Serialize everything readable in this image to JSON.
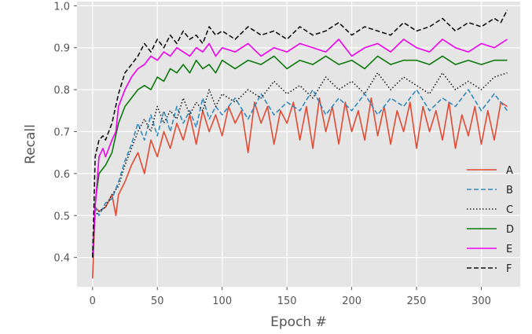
{
  "chart_data": {
    "type": "line",
    "title": "",
    "xlabel": "Epoch #",
    "ylabel": "Recall",
    "xlim": [
      -12,
      330
    ],
    "ylim": [
      0.33,
      1.01
    ],
    "x_ticks": [
      0,
      50,
      100,
      150,
      200,
      250,
      300
    ],
    "y_ticks": [
      0.4,
      0.5,
      0.6,
      0.7,
      0.8,
      0.9,
      1.0
    ],
    "grid": true,
    "background": "#e5e5e5",
    "legend_position": "lower-right",
    "series": [
      {
        "name": "A",
        "color": "#e24a33",
        "dash": "solid",
        "x": [
          0,
          2,
          5,
          10,
          15,
          18,
          20,
          25,
          30,
          35,
          40,
          45,
          50,
          55,
          60,
          65,
          70,
          75,
          80,
          85,
          90,
          95,
          100,
          105,
          110,
          115,
          120,
          125,
          130,
          135,
          140,
          145,
          150,
          155,
          160,
          165,
          170,
          175,
          180,
          185,
          190,
          195,
          200,
          205,
          210,
          215,
          220,
          225,
          230,
          235,
          240,
          245,
          250,
          255,
          260,
          265,
          270,
          275,
          280,
          285,
          290,
          295,
          300,
          305,
          310,
          315,
          320
        ],
        "y": [
          0.35,
          0.52,
          0.51,
          0.52,
          0.55,
          0.5,
          0.55,
          0.58,
          0.62,
          0.65,
          0.6,
          0.68,
          0.64,
          0.7,
          0.66,
          0.72,
          0.68,
          0.74,
          0.67,
          0.75,
          0.7,
          0.74,
          0.69,
          0.76,
          0.72,
          0.75,
          0.65,
          0.77,
          0.72,
          0.76,
          0.67,
          0.75,
          0.72,
          0.77,
          0.68,
          0.76,
          0.66,
          0.78,
          0.7,
          0.76,
          0.67,
          0.77,
          0.7,
          0.75,
          0.68,
          0.78,
          0.69,
          0.76,
          0.67,
          0.75,
          0.7,
          0.77,
          0.66,
          0.76,
          0.7,
          0.75,
          0.68,
          0.77,
          0.66,
          0.74,
          0.69,
          0.76,
          0.67,
          0.75,
          0.68,
          0.77,
          0.76
        ]
      },
      {
        "name": "B",
        "color": "#348abd",
        "dash": "dashed",
        "x": [
          0,
          2,
          5,
          10,
          15,
          20,
          25,
          30,
          35,
          40,
          45,
          50,
          55,
          60,
          65,
          70,
          75,
          80,
          85,
          90,
          95,
          100,
          110,
          120,
          130,
          140,
          150,
          160,
          170,
          180,
          190,
          200,
          210,
          220,
          230,
          240,
          250,
          260,
          270,
          280,
          290,
          300,
          310,
          320
        ],
        "y": [
          0.4,
          0.52,
          0.5,
          0.53,
          0.54,
          0.58,
          0.63,
          0.67,
          0.72,
          0.68,
          0.74,
          0.69,
          0.75,
          0.7,
          0.76,
          0.72,
          0.75,
          0.71,
          0.78,
          0.73,
          0.76,
          0.74,
          0.78,
          0.73,
          0.79,
          0.74,
          0.77,
          0.75,
          0.8,
          0.74,
          0.78,
          0.75,
          0.79,
          0.74,
          0.78,
          0.76,
          0.8,
          0.75,
          0.78,
          0.76,
          0.8,
          0.75,
          0.79,
          0.75
        ]
      },
      {
        "name": "C",
        "color": "#222222",
        "dash": "dotted",
        "x": [
          0,
          2,
          5,
          10,
          15,
          20,
          25,
          30,
          35,
          40,
          45,
          50,
          55,
          60,
          65,
          70,
          75,
          80,
          85,
          90,
          95,
          100,
          110,
          120,
          130,
          140,
          150,
          160,
          170,
          180,
          190,
          200,
          210,
          220,
          230,
          240,
          250,
          260,
          270,
          280,
          290,
          300,
          310,
          320
        ],
        "y": [
          0.4,
          0.5,
          0.51,
          0.52,
          0.55,
          0.57,
          0.62,
          0.66,
          0.7,
          0.73,
          0.7,
          0.76,
          0.72,
          0.75,
          0.73,
          0.78,
          0.74,
          0.77,
          0.75,
          0.8,
          0.76,
          0.79,
          0.77,
          0.8,
          0.78,
          0.82,
          0.79,
          0.81,
          0.78,
          0.83,
          0.8,
          0.82,
          0.79,
          0.84,
          0.8,
          0.83,
          0.81,
          0.79,
          0.84,
          0.8,
          0.82,
          0.8,
          0.83,
          0.84
        ]
      },
      {
        "name": "D",
        "color": "#0b7a0b",
        "dash": "solid",
        "x": [
          0,
          2,
          5,
          10,
          15,
          20,
          25,
          30,
          35,
          40,
          45,
          50,
          55,
          60,
          65,
          70,
          75,
          80,
          85,
          90,
          95,
          100,
          110,
          120,
          130,
          140,
          150,
          160,
          170,
          180,
          190,
          200,
          210,
          220,
          230,
          240,
          250,
          260,
          270,
          280,
          290,
          300,
          310,
          320
        ],
        "y": [
          0.4,
          0.53,
          0.6,
          0.62,
          0.65,
          0.72,
          0.76,
          0.78,
          0.8,
          0.81,
          0.8,
          0.83,
          0.82,
          0.85,
          0.84,
          0.86,
          0.84,
          0.87,
          0.85,
          0.86,
          0.84,
          0.87,
          0.85,
          0.87,
          0.86,
          0.88,
          0.85,
          0.87,
          0.86,
          0.88,
          0.86,
          0.87,
          0.85,
          0.88,
          0.86,
          0.87,
          0.87,
          0.86,
          0.88,
          0.86,
          0.87,
          0.86,
          0.87,
          0.87
        ]
      },
      {
        "name": "E",
        "color": "#ee00ee",
        "dash": "solid",
        "x": [
          0,
          2,
          5,
          8,
          10,
          15,
          18,
          20,
          25,
          30,
          35,
          40,
          45,
          50,
          55,
          60,
          65,
          70,
          75,
          80,
          85,
          90,
          95,
          100,
          110,
          120,
          130,
          140,
          150,
          160,
          170,
          180,
          190,
          200,
          210,
          220,
          230,
          240,
          250,
          260,
          270,
          280,
          290,
          300,
          310,
          320
        ],
        "y": [
          0.4,
          0.52,
          0.64,
          0.66,
          0.64,
          0.68,
          0.7,
          0.76,
          0.8,
          0.83,
          0.85,
          0.86,
          0.88,
          0.87,
          0.89,
          0.88,
          0.9,
          0.89,
          0.88,
          0.9,
          0.89,
          0.91,
          0.88,
          0.9,
          0.89,
          0.91,
          0.88,
          0.9,
          0.89,
          0.91,
          0.9,
          0.89,
          0.92,
          0.88,
          0.9,
          0.91,
          0.89,
          0.92,
          0.9,
          0.89,
          0.92,
          0.9,
          0.89,
          0.91,
          0.9,
          0.92
        ]
      },
      {
        "name": "F",
        "color": "#111111",
        "dash": "dashed",
        "x": [
          0,
          2,
          5,
          8,
          10,
          15,
          20,
          25,
          30,
          35,
          40,
          45,
          50,
          55,
          60,
          65,
          70,
          75,
          80,
          85,
          90,
          95,
          100,
          110,
          120,
          130,
          140,
          150,
          160,
          170,
          180,
          190,
          200,
          210,
          220,
          230,
          240,
          250,
          260,
          270,
          280,
          290,
          300,
          310,
          315,
          320
        ],
        "y": [
          0.4,
          0.64,
          0.68,
          0.69,
          0.68,
          0.72,
          0.79,
          0.84,
          0.86,
          0.88,
          0.91,
          0.89,
          0.92,
          0.9,
          0.93,
          0.91,
          0.94,
          0.92,
          0.93,
          0.91,
          0.95,
          0.93,
          0.94,
          0.92,
          0.95,
          0.93,
          0.94,
          0.92,
          0.95,
          0.93,
          0.94,
          0.96,
          0.93,
          0.95,
          0.94,
          0.93,
          0.96,
          0.94,
          0.95,
          0.97,
          0.94,
          0.96,
          0.95,
          0.97,
          0.96,
          0.99
        ]
      }
    ]
  }
}
